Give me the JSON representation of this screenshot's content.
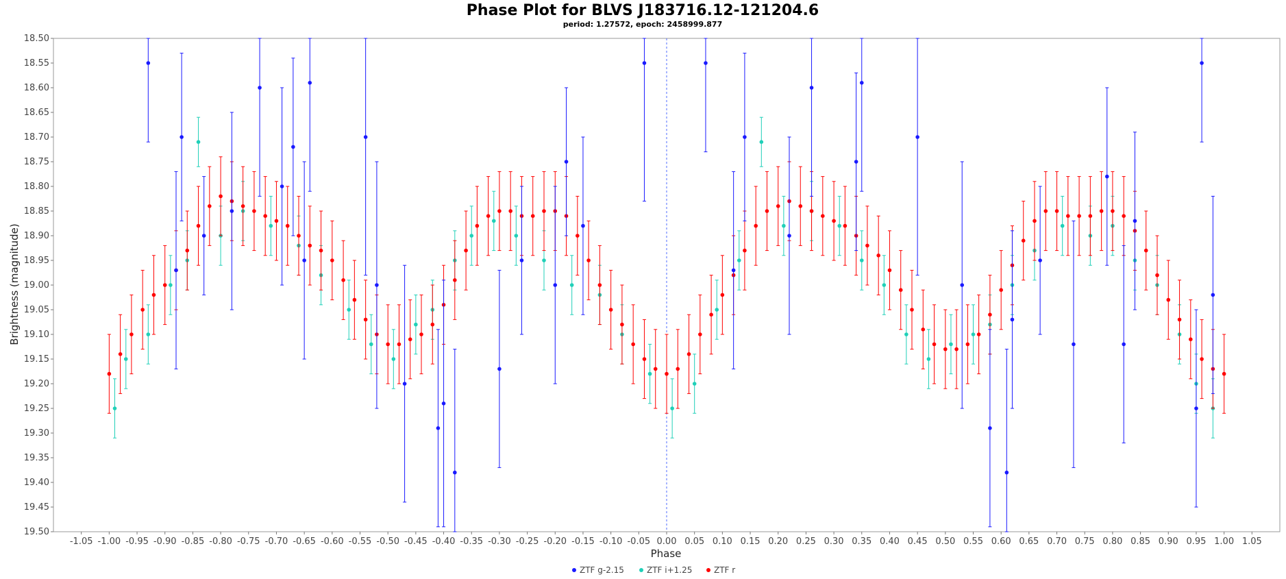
{
  "chart_data": {
    "type": "scatter",
    "title": "Phase Plot for BLVS J183716.12-121204.6",
    "subtitle": "period: 1.27572, epoch: 2458999.877",
    "xlabel": "Phase",
    "ylabel": "Brightness (magnitude)",
    "xlim": [
      -1.1,
      1.1
    ],
    "ylim": [
      18.5,
      19.5
    ],
    "y_inverted": true,
    "x_ticks": [
      "-1.05",
      "-1.00",
      "-0.95",
      "-0.90",
      "-0.85",
      "-0.80",
      "-0.75",
      "-0.70",
      "-0.65",
      "-0.60",
      "-0.55",
      "-0.50",
      "-0.45",
      "-0.40",
      "-0.35",
      "-0.30",
      "-0.25",
      "-0.20",
      "-0.15",
      "-0.10",
      "-0.05",
      "0.00",
      "0.05",
      "0.10",
      "0.15",
      "0.20",
      "0.25",
      "0.30",
      "0.35",
      "0.40",
      "0.45",
      "0.50",
      "0.55",
      "0.60",
      "0.65",
      "0.70",
      "0.75",
      "0.80",
      "0.85",
      "0.90",
      "0.95",
      "1.00",
      "1.05"
    ],
    "y_ticks": [
      "18.50",
      "18.55",
      "18.60",
      "18.65",
      "18.70",
      "18.75",
      "18.80",
      "18.85",
      "18.90",
      "18.95",
      "19.00",
      "19.05",
      "19.10",
      "19.15",
      "19.20",
      "19.25",
      "19.30",
      "19.35",
      "19.40",
      "19.45",
      "19.50"
    ],
    "reference_line_x": 0.0,
    "legend_position": "bottom-center",
    "grid": false,
    "series": [
      {
        "name": "ZTF g-2.15",
        "color": "#1a1aff",
        "x": [
          -0.93,
          -0.88,
          -0.87,
          -0.83,
          -0.78,
          -0.73,
          -0.69,
          -0.67,
          -0.65,
          -0.64,
          -0.54,
          -0.52,
          -0.47,
          -0.41,
          -0.4,
          -0.38,
          -0.3,
          -0.26,
          -0.2,
          -0.18,
          -0.15,
          -0.04,
          0.07,
          0.12,
          0.14,
          0.22,
          0.26,
          0.34,
          0.35,
          0.45,
          0.53,
          0.58,
          0.61,
          0.62,
          0.67,
          0.73,
          0.79,
          0.82,
          0.84,
          0.95,
          0.96,
          0.98
        ],
        "y": [
          18.55,
          18.97,
          18.7,
          18.9,
          18.85,
          18.6,
          18.8,
          18.72,
          18.95,
          18.59,
          18.7,
          19.0,
          19.2,
          19.29,
          19.24,
          19.38,
          19.17,
          18.95,
          19.0,
          18.75,
          18.88,
          18.55,
          18.55,
          18.97,
          18.7,
          18.9,
          18.6,
          18.75,
          18.59,
          18.7,
          19.0,
          19.29,
          19.38,
          19.07,
          18.95,
          19.12,
          18.78,
          19.12,
          18.87,
          19.25,
          18.55,
          19.02
        ],
        "err": [
          0.16,
          0.2,
          0.17,
          0.12,
          0.2,
          0.22,
          0.2,
          0.18,
          0.2,
          0.22,
          0.28,
          0.25,
          0.24,
          0.2,
          0.25,
          0.25,
          0.2,
          0.15,
          0.2,
          0.15,
          0.18,
          0.28,
          0.18,
          0.2,
          0.17,
          0.2,
          0.22,
          0.18,
          0.22,
          0.28,
          0.25,
          0.2,
          0.25,
          0.18,
          0.15,
          0.25,
          0.18,
          0.2,
          0.18,
          0.2,
          0.16,
          0.2
        ]
      },
      {
        "name": "ZTF i+1.25",
        "color": "#20d0b8",
        "x": [
          -0.99,
          -0.97,
          -0.93,
          -0.89,
          -0.86,
          -0.84,
          -0.8,
          -0.76,
          -0.71,
          -0.66,
          -0.62,
          -0.57,
          -0.53,
          -0.49,
          -0.45,
          -0.42,
          -0.38,
          -0.35,
          -0.31,
          -0.27,
          -0.22,
          -0.17,
          -0.12,
          -0.08,
          -0.03,
          0.01,
          0.05,
          0.09,
          0.13,
          0.17,
          0.21,
          0.26,
          0.31,
          0.35,
          0.39,
          0.43,
          0.47,
          0.51,
          0.55,
          0.58,
          0.62,
          0.66,
          0.71,
          0.76,
          0.8,
          0.84,
          0.88,
          0.92,
          0.95,
          0.98
        ],
        "y": [
          19.25,
          19.15,
          19.1,
          19.0,
          18.95,
          18.71,
          18.9,
          18.85,
          18.88,
          18.92,
          18.98,
          19.05,
          19.12,
          19.15,
          19.08,
          19.05,
          18.95,
          18.9,
          18.87,
          18.9,
          18.95,
          19.0,
          19.02,
          19.1,
          19.18,
          19.25,
          19.2,
          19.05,
          18.95,
          18.71,
          18.88,
          18.85,
          18.88,
          18.95,
          19.0,
          19.1,
          19.15,
          19.12,
          19.1,
          19.08,
          19.0,
          18.93,
          18.88,
          18.9,
          18.88,
          18.95,
          19.0,
          19.1,
          19.2,
          19.25
        ],
        "err": [
          0.06,
          0.06,
          0.06,
          0.06,
          0.06,
          0.05,
          0.06,
          0.06,
          0.06,
          0.06,
          0.06,
          0.06,
          0.06,
          0.06,
          0.06,
          0.06,
          0.06,
          0.06,
          0.06,
          0.06,
          0.06,
          0.06,
          0.06,
          0.06,
          0.06,
          0.06,
          0.06,
          0.06,
          0.06,
          0.05,
          0.06,
          0.06,
          0.06,
          0.06,
          0.06,
          0.06,
          0.06,
          0.06,
          0.06,
          0.06,
          0.06,
          0.06,
          0.06,
          0.06,
          0.06,
          0.06,
          0.06,
          0.06,
          0.06,
          0.06
        ]
      },
      {
        "name": "ZTF r",
        "color": "#ff0000",
        "x": [
          -1.0,
          -0.98,
          -0.96,
          -0.94,
          -0.92,
          -0.9,
          -0.88,
          -0.86,
          -0.84,
          -0.82,
          -0.8,
          -0.78,
          -0.76,
          -0.74,
          -0.72,
          -0.7,
          -0.68,
          -0.66,
          -0.64,
          -0.62,
          -0.6,
          -0.58,
          -0.56,
          -0.54,
          -0.52,
          -0.5,
          -0.48,
          -0.46,
          -0.44,
          -0.42,
          -0.4,
          -0.38,
          -0.36,
          -0.34,
          -0.32,
          -0.3,
          -0.28,
          -0.26,
          -0.24,
          -0.22,
          -0.2,
          -0.18,
          -0.16,
          -0.14,
          -0.12,
          -0.1,
          -0.08,
          -0.06,
          -0.04,
          -0.02,
          0.0,
          0.02,
          0.04,
          0.06,
          0.08,
          0.1,
          0.12,
          0.14,
          0.16,
          0.18,
          0.2,
          0.22,
          0.24,
          0.26,
          0.28,
          0.3,
          0.32,
          0.34,
          0.36,
          0.38,
          0.4,
          0.42,
          0.44,
          0.46,
          0.48,
          0.5,
          0.52,
          0.54,
          0.56,
          0.58,
          0.6,
          0.62,
          0.64,
          0.66,
          0.68,
          0.7,
          0.72,
          0.74,
          0.76,
          0.78,
          0.8,
          0.82,
          0.84,
          0.86,
          0.88,
          0.9,
          0.92,
          0.94,
          0.96,
          0.98,
          1.0
        ],
        "y": [
          19.18,
          19.14,
          19.1,
          19.05,
          19.02,
          19.0,
          18.97,
          18.93,
          18.88,
          18.84,
          18.82,
          18.83,
          18.84,
          18.85,
          18.86,
          18.87,
          18.88,
          18.9,
          18.92,
          18.93,
          18.95,
          18.99,
          19.03,
          19.07,
          19.1,
          19.12,
          19.12,
          19.11,
          19.1,
          19.08,
          19.04,
          18.99,
          18.93,
          18.88,
          18.86,
          18.85,
          18.85,
          18.86,
          18.86,
          18.85,
          18.85,
          18.86,
          18.9,
          18.95,
          19.0,
          19.05,
          19.08,
          19.12,
          19.15,
          19.17,
          19.18,
          19.17,
          19.14,
          19.1,
          19.06,
          19.02,
          18.98,
          18.93,
          18.88,
          18.85,
          18.84,
          18.83,
          18.84,
          18.85,
          18.86,
          18.87,
          18.88,
          18.9,
          18.92,
          18.94,
          18.97,
          19.01,
          19.05,
          19.09,
          19.12,
          19.13,
          19.13,
          19.12,
          19.1,
          19.06,
          19.01,
          18.96,
          18.91,
          18.87,
          18.85,
          18.85,
          18.86,
          18.86,
          18.86,
          18.85,
          18.85,
          18.86,
          18.89,
          18.93,
          18.98,
          19.03,
          19.07,
          19.11,
          19.15,
          19.17,
          19.18
        ],
        "err": [
          0.08,
          0.08,
          0.08,
          0.08,
          0.08,
          0.08,
          0.08,
          0.08,
          0.08,
          0.08,
          0.08,
          0.08,
          0.08,
          0.08,
          0.08,
          0.08,
          0.08,
          0.08,
          0.08,
          0.08,
          0.08,
          0.08,
          0.08,
          0.08,
          0.08,
          0.08,
          0.08,
          0.08,
          0.08,
          0.08,
          0.08,
          0.08,
          0.08,
          0.08,
          0.08,
          0.08,
          0.08,
          0.08,
          0.08,
          0.08,
          0.08,
          0.08,
          0.08,
          0.08,
          0.08,
          0.08,
          0.08,
          0.08,
          0.08,
          0.08,
          0.08,
          0.08,
          0.08,
          0.08,
          0.08,
          0.08,
          0.08,
          0.08,
          0.08,
          0.08,
          0.08,
          0.08,
          0.08,
          0.08,
          0.08,
          0.08,
          0.08,
          0.08,
          0.08,
          0.08,
          0.08,
          0.08,
          0.08,
          0.08,
          0.08,
          0.08,
          0.08,
          0.08,
          0.08,
          0.08,
          0.08,
          0.08,
          0.08,
          0.08,
          0.08,
          0.08,
          0.08,
          0.08,
          0.08,
          0.08,
          0.08,
          0.08,
          0.08,
          0.08,
          0.08,
          0.08,
          0.08,
          0.08,
          0.08,
          0.08,
          0.08
        ]
      }
    ]
  }
}
